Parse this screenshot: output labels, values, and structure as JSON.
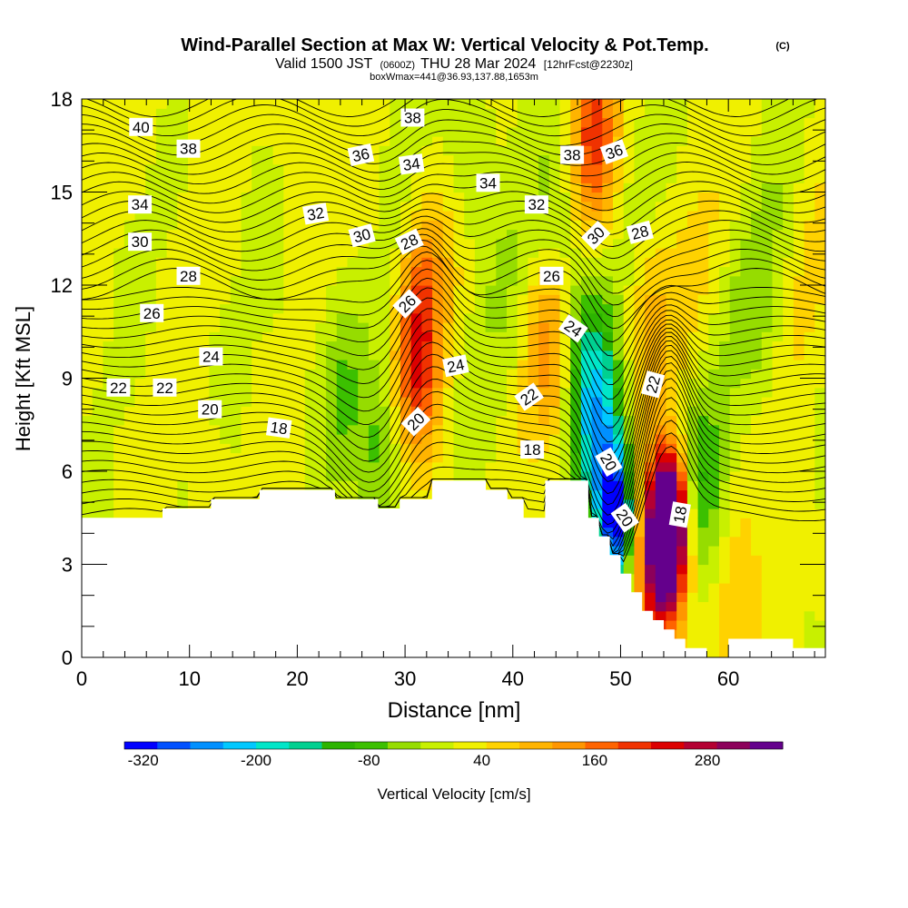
{
  "chart_data": {
    "type": "heatmap",
    "title": "Wind-Parallel Section at Max W: Vertical Velocity & Pot.Temp.",
    "title_mark": "(C)",
    "subtitle_main": "Valid 1500 JST",
    "subtitle_z": "(0600Z)",
    "subtitle_date": "THU 28 Mar 2024",
    "subtitle_fcst": "[12hrFcst@2230z]",
    "subtitle2": "boxWmax=441@36.93,137.88,1653m",
    "xlabel": "Distance [nm]",
    "ylabel": "Height [Kft MSL]",
    "xlim": [
      0,
      69
    ],
    "ylim": [
      0,
      18
    ],
    "xticks": [
      "0",
      "10",
      "20",
      "30",
      "40",
      "50",
      "60"
    ],
    "yticks": [
      "0",
      "3",
      "6",
      "9",
      "12",
      "15",
      "18"
    ],
    "colorbar": {
      "label": "Vertical Velocity [cm/s]",
      "tick_labels": [
        "-320",
        "-200",
        "-80",
        "40",
        "160",
        "280"
      ],
      "colors": [
        "#0000ff",
        "#0050ff",
        "#0090ff",
        "#00c8ff",
        "#00e6c8",
        "#00d090",
        "#2cb400",
        "#3cc000",
        "#96dc00",
        "#c8f000",
        "#f0f000",
        "#ffd200",
        "#ffb400",
        "#ff9600",
        "#ff6400",
        "#f03200",
        "#dc0000",
        "#b40032",
        "#8c005a",
        "#64008c"
      ],
      "min": -340,
      "max": 360
    },
    "w_features": [
      {
        "x": 54.5,
        "y": 4.3,
        "w": 440
      },
      {
        "x": 53.5,
        "y": 3.0,
        "w": 250
      },
      {
        "x": 31.0,
        "y": 9.0,
        "w": 150
      },
      {
        "x": 31.5,
        "y": 12.0,
        "w": 100
      },
      {
        "x": 47.5,
        "y": 17.0,
        "w": 170
      },
      {
        "x": 43.5,
        "y": 10.0,
        "w": 100
      },
      {
        "x": 52.5,
        "y": 11.0,
        "w": 80
      },
      {
        "x": 49.5,
        "y": 4.5,
        "w": -320
      },
      {
        "x": 48.0,
        "y": 7.0,
        "w": -200
      },
      {
        "x": 46.5,
        "y": 10.0,
        "w": -110
      },
      {
        "x": 57.5,
        "y": 5.5,
        "w": -100
      },
      {
        "x": 24.0,
        "y": 8.5,
        "w": -80
      },
      {
        "x": 28.0,
        "y": 6.5,
        "w": -90
      },
      {
        "x": 36.0,
        "y": 16.0,
        "w": -60
      },
      {
        "x": 44.5,
        "y": 13.5,
        "w": -60
      },
      {
        "x": 63.5,
        "y": 10.5,
        "w": -40
      },
      {
        "x": 61.0,
        "y": 1.2,
        "w": 70
      }
    ],
    "theta_labels": [
      {
        "text": "40",
        "x": 5.5,
        "y": 17.1,
        "angle": 0
      },
      {
        "text": "38",
        "x": 9.9,
        "y": 16.4,
        "angle": 0
      },
      {
        "text": "38",
        "x": 30.7,
        "y": 17.4,
        "angle": 0
      },
      {
        "text": "36",
        "x": 25.9,
        "y": 16.2,
        "angle": -12
      },
      {
        "text": "34",
        "x": 30.6,
        "y": 15.9,
        "angle": -8
      },
      {
        "text": "34",
        "x": 5.4,
        "y": 14.6,
        "angle": 0
      },
      {
        "text": "34",
        "x": 37.7,
        "y": 15.3,
        "angle": 0
      },
      {
        "text": "38",
        "x": 45.5,
        "y": 16.2,
        "angle": 0
      },
      {
        "text": "36",
        "x": 49.4,
        "y": 16.3,
        "angle": -20
      },
      {
        "text": "32",
        "x": 21.7,
        "y": 14.3,
        "angle": -10
      },
      {
        "text": "32",
        "x": 42.2,
        "y": 14.6,
        "angle": 0
      },
      {
        "text": "30",
        "x": 5.4,
        "y": 13.4,
        "angle": 0
      },
      {
        "text": "30",
        "x": 26.0,
        "y": 13.6,
        "angle": -15
      },
      {
        "text": "30",
        "x": 47.7,
        "y": 13.6,
        "angle": -45
      },
      {
        "text": "28",
        "x": 30.4,
        "y": 13.4,
        "angle": -25
      },
      {
        "text": "28",
        "x": 51.8,
        "y": 13.7,
        "angle": -15
      },
      {
        "text": "28",
        "x": 9.9,
        "y": 12.3,
        "angle": 0
      },
      {
        "text": "26",
        "x": 43.6,
        "y": 12.3,
        "angle": 0
      },
      {
        "text": "26",
        "x": 30.2,
        "y": 11.4,
        "angle": -45
      },
      {
        "text": "26",
        "x": 6.5,
        "y": 11.1,
        "angle": 0
      },
      {
        "text": "24",
        "x": 45.6,
        "y": 10.6,
        "angle": 35
      },
      {
        "text": "24",
        "x": 12.0,
        "y": 9.7,
        "angle": 0
      },
      {
        "text": "24",
        "x": 34.7,
        "y": 9.4,
        "angle": -12
      },
      {
        "text": "22",
        "x": 3.4,
        "y": 8.7,
        "angle": 0
      },
      {
        "text": "22",
        "x": 7.7,
        "y": 8.7,
        "angle": 0
      },
      {
        "text": "22",
        "x": 41.5,
        "y": 8.4,
        "angle": -35
      },
      {
        "text": "22",
        "x": 53.0,
        "y": 8.8,
        "angle": -75
      },
      {
        "text": "20",
        "x": 11.9,
        "y": 8.0,
        "angle": 0
      },
      {
        "text": "20",
        "x": 31.0,
        "y": 7.6,
        "angle": -45
      },
      {
        "text": "20",
        "x": 48.9,
        "y": 6.3,
        "angle": 60
      },
      {
        "text": "20",
        "x": 50.4,
        "y": 4.5,
        "angle": 55
      },
      {
        "text": "18",
        "x": 18.3,
        "y": 7.4,
        "angle": 8
      },
      {
        "text": "18",
        "x": 41.8,
        "y": 6.7,
        "angle": 0
      },
      {
        "text": "18",
        "x": 55.5,
        "y": 4.6,
        "angle": -80
      }
    ],
    "terrain_kft": [
      [
        0,
        4.5
      ],
      [
        7.5,
        4.5
      ],
      [
        7.5,
        4.8
      ],
      [
        12,
        4.8
      ],
      [
        12,
        5.1
      ],
      [
        16.5,
        5.1
      ],
      [
        16.5,
        5.4
      ],
      [
        23.5,
        5.4
      ],
      [
        23.5,
        5.1
      ],
      [
        27.5,
        5.1
      ],
      [
        27.5,
        4.8
      ],
      [
        29.5,
        4.8
      ],
      [
        29.5,
        5.1
      ],
      [
        32.5,
        5.1
      ],
      [
        32.5,
        5.7
      ],
      [
        37.5,
        5.7
      ],
      [
        37.5,
        5.4
      ],
      [
        39.5,
        5.4
      ],
      [
        39.5,
        5.1
      ],
      [
        41,
        5.1
      ],
      [
        41,
        4.5
      ],
      [
        43,
        4.5
      ],
      [
        43,
        5.7
      ],
      [
        47,
        5.7
      ],
      [
        47,
        4.5
      ],
      [
        48,
        4.5
      ],
      [
        48,
        3.9
      ],
      [
        49,
        3.9
      ],
      [
        49,
        3.3
      ],
      [
        50,
        3.3
      ],
      [
        50,
        2.7
      ],
      [
        51,
        2.7
      ],
      [
        51,
        2.1
      ],
      [
        52,
        2.1
      ],
      [
        52,
        1.5
      ],
      [
        53,
        1.5
      ],
      [
        53,
        1.2
      ],
      [
        54,
        1.2
      ],
      [
        54,
        0.9
      ],
      [
        55,
        0.9
      ],
      [
        55,
        0.6
      ],
      [
        56,
        0.6
      ],
      [
        56,
        0.3
      ],
      [
        58,
        0.3
      ],
      [
        58,
        0.0
      ],
      [
        60,
        0.0
      ],
      [
        60,
        0.6
      ],
      [
        66,
        0.6
      ],
      [
        66,
        0.3
      ],
      [
        69,
        0.3
      ],
      [
        69,
        0
      ]
    ]
  }
}
